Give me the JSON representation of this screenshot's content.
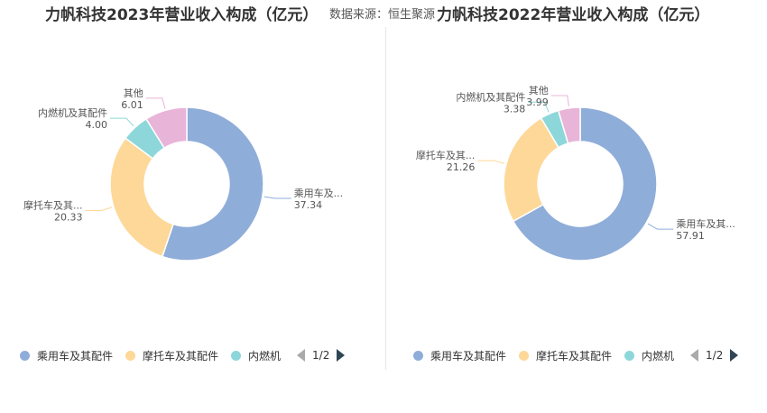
{
  "source_text": "数据来源：恒生聚源",
  "colors": {
    "series": [
      "#8fadd9",
      "#fdd898",
      "#8dd7da",
      "#e8b4d8"
    ],
    "arrow_inactive": "#aaaaaa",
    "arrow_active": "#2f4554"
  },
  "chart_data": [
    {
      "type": "pie",
      "donut": true,
      "title": "力帆科技2023年营业收入构成（亿元）",
      "slices": [
        {
          "name": "乘用车及其配件",
          "label": "乘用车及...",
          "value": 37.34,
          "value_text": "37.34"
        },
        {
          "name": "摩托车及其配件",
          "label": "摩托车及其...",
          "value": 20.33,
          "value_text": "20.33"
        },
        {
          "name": "内燃机及其配件",
          "label": "内燃机及其配件",
          "value": 4.0,
          "value_text": "4.00"
        },
        {
          "name": "其他",
          "label": "其他",
          "value": 6.01,
          "value_text": "6.01"
        }
      ],
      "legend": {
        "items": [
          "乘用车及其配件",
          "摩托车及其配件",
          "内燃机"
        ],
        "page": "1/2"
      }
    },
    {
      "type": "pie",
      "donut": true,
      "title": "力帆科技2022年营业收入构成（亿元）",
      "slices": [
        {
          "name": "乘用车及其配件",
          "label": "乘用车及其...",
          "value": 57.91,
          "value_text": "57.91"
        },
        {
          "name": "摩托车及其配件",
          "label": "摩托车及其...",
          "value": 21.26,
          "value_text": "21.26"
        },
        {
          "name": "内燃机及其配件",
          "label": "内燃机及其配件",
          "value": 3.38,
          "value_text": "3.38"
        },
        {
          "name": "其他",
          "label": "其他",
          "value": 3.99,
          "value_text": "3.99"
        }
      ],
      "legend": {
        "items": [
          "乘用车及其配件",
          "摩托车及其配件",
          "内燃机"
        ],
        "page": "1/2"
      }
    }
  ]
}
